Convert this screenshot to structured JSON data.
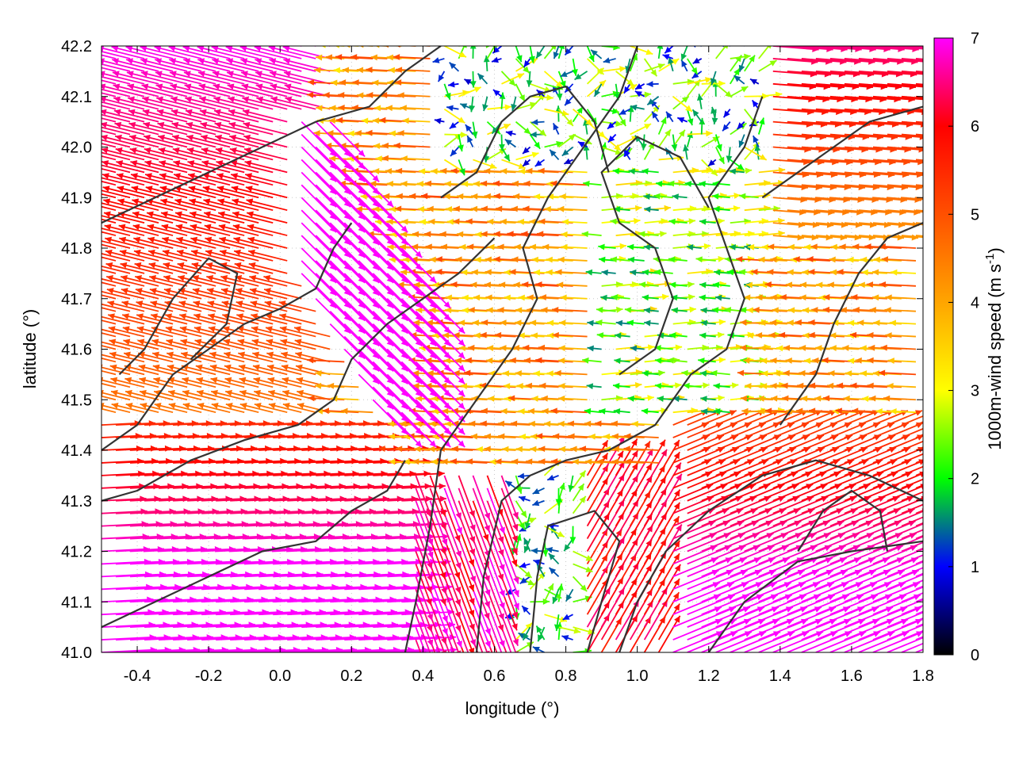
{
  "chart_data": {
    "type": "vector-field",
    "xlabel": "longitude (°)",
    "ylabel": "latitude (°)",
    "xlim": [
      -0.5,
      1.8
    ],
    "ylim": [
      41.0,
      42.2
    ],
    "xticks": [
      "-0.4",
      "-0.2",
      "0.0",
      "0.2",
      "0.4",
      "0.6",
      "0.8",
      "1.0",
      "1.2",
      "1.4",
      "1.6",
      "1.8"
    ],
    "xtick_values": [
      -0.4,
      -0.2,
      0.0,
      0.2,
      0.4,
      0.6,
      0.8,
      1.0,
      1.2,
      1.4,
      1.6,
      1.8
    ],
    "yticks": [
      "41.0",
      "41.1",
      "41.2",
      "41.3",
      "41.4",
      "41.5",
      "41.6",
      "41.7",
      "41.8",
      "41.9",
      "42.0",
      "42.1",
      "42.2"
    ],
    "ytick_values": [
      41.0,
      41.1,
      41.2,
      41.3,
      41.4,
      41.5,
      41.6,
      41.7,
      41.8,
      41.9,
      42.0,
      42.1,
      42.2
    ],
    "grid": true,
    "colorbar": {
      "label": "1000m-wind speed (m s",
      "label_sup": "-1",
      "label_close": ")",
      "range": [
        0,
        7
      ],
      "ticks": [
        "0",
        "1",
        "2",
        "3",
        "4",
        "5",
        "6",
        "7"
      ],
      "tick_values": [
        0,
        1,
        2,
        3,
        4,
        5,
        6,
        7
      ],
      "stops": [
        {
          "v": 0,
          "color": "#000000"
        },
        {
          "v": 1,
          "color": "#0000ff"
        },
        {
          "v": 2,
          "color": "#00ff00"
        },
        {
          "v": 3,
          "color": "#ffff00"
        },
        {
          "v": 4,
          "color": "#ffa500"
        },
        {
          "v": 5,
          "color": "#ff5000"
        },
        {
          "v": 6,
          "color": "#ff0000"
        },
        {
          "v": 7,
          "color": "#ff00ff"
        }
      ]
    },
    "contour_color": "#333333",
    "contours": [
      [
        [
          0.35,
          41.0
        ],
        [
          0.38,
          41.1
        ],
        [
          0.42,
          41.25
        ],
        [
          0.45,
          41.4
        ],
        [
          0.55,
          41.5
        ],
        [
          0.65,
          41.6
        ],
        [
          0.72,
          41.7
        ],
        [
          0.68,
          41.8
        ],
        [
          0.75,
          41.9
        ],
        [
          0.85,
          42.0
        ],
        [
          0.95,
          42.1
        ],
        [
          1.0,
          42.2
        ]
      ],
      [
        [
          0.55,
          41.0
        ],
        [
          0.57,
          41.15
        ],
        [
          0.62,
          41.3
        ],
        [
          0.7,
          41.35
        ],
        [
          0.8,
          41.38
        ],
        [
          0.92,
          41.4
        ],
        [
          1.05,
          41.45
        ],
        [
          1.15,
          41.55
        ],
        [
          1.25,
          41.6
        ],
        [
          1.3,
          41.7
        ],
        [
          1.25,
          41.8
        ],
        [
          1.2,
          41.9
        ],
        [
          1.3,
          42.0
        ],
        [
          1.35,
          42.1
        ]
      ],
      [
        [
          0.7,
          41.0
        ],
        [
          0.72,
          41.15
        ],
        [
          0.75,
          41.25
        ],
        [
          0.88,
          41.28
        ],
        [
          0.95,
          41.22
        ],
        [
          0.9,
          41.1
        ],
        [
          0.86,
          41.0
        ]
      ],
      [
        [
          0.95,
          41.0
        ],
        [
          1.0,
          41.1
        ],
        [
          1.08,
          41.2
        ],
        [
          1.2,
          41.28
        ],
        [
          1.35,
          41.35
        ],
        [
          1.5,
          41.38
        ],
        [
          1.65,
          41.35
        ],
        [
          1.8,
          41.3
        ]
      ],
      [
        [
          1.2,
          41.0
        ],
        [
          1.3,
          41.1
        ],
        [
          1.45,
          41.18
        ],
        [
          1.6,
          41.2
        ],
        [
          1.8,
          41.22
        ]
      ],
      [
        [
          -0.5,
          41.4
        ],
        [
          -0.4,
          41.45
        ],
        [
          -0.3,
          41.55
        ],
        [
          -0.2,
          41.6
        ],
        [
          -0.1,
          41.65
        ],
        [
          0.0,
          41.68
        ],
        [
          0.1,
          41.72
        ],
        [
          0.15,
          41.8
        ],
        [
          0.2,
          41.85
        ]
      ],
      [
        [
          -0.5,
          41.85
        ],
        [
          -0.35,
          41.9
        ],
        [
          -0.2,
          41.95
        ],
        [
          -0.05,
          42.0
        ],
        [
          0.1,
          42.05
        ],
        [
          0.25,
          42.08
        ],
        [
          0.35,
          42.15
        ],
        [
          0.45,
          42.2
        ]
      ],
      [
        [
          -0.5,
          41.3
        ],
        [
          -0.4,
          41.32
        ],
        [
          -0.25,
          41.38
        ],
        [
          -0.1,
          41.42
        ],
        [
          0.05,
          41.45
        ],
        [
          0.15,
          41.5
        ],
        [
          0.2,
          41.58
        ],
        [
          0.3,
          41.65
        ],
        [
          0.4,
          41.7
        ],
        [
          0.5,
          41.75
        ],
        [
          0.6,
          41.82
        ]
      ],
      [
        [
          -0.5,
          41.05
        ],
        [
          -0.35,
          41.1
        ],
        [
          -0.2,
          41.15
        ],
        [
          -0.05,
          41.2
        ],
        [
          0.1,
          41.22
        ],
        [
          0.2,
          41.28
        ],
        [
          0.3,
          41.32
        ],
        [
          0.35,
          41.38
        ]
      ],
      [
        [
          0.95,
          41.55
        ],
        [
          1.05,
          41.6
        ],
        [
          1.1,
          41.7
        ],
        [
          1.05,
          41.8
        ],
        [
          0.95,
          41.85
        ],
        [
          0.9,
          41.95
        ],
        [
          1.0,
          42.02
        ],
        [
          1.12,
          41.98
        ],
        [
          1.2,
          41.88
        ]
      ],
      [
        [
          1.4,
          41.45
        ],
        [
          1.5,
          41.55
        ],
        [
          1.55,
          41.65
        ],
        [
          1.62,
          41.75
        ],
        [
          1.7,
          41.82
        ],
        [
          1.8,
          41.85
        ]
      ],
      [
        [
          1.35,
          41.9
        ],
        [
          1.45,
          41.95
        ],
        [
          1.55,
          42.0
        ],
        [
          1.65,
          42.05
        ],
        [
          1.8,
          42.08
        ]
      ],
      [
        [
          0.45,
          41.9
        ],
        [
          0.55,
          41.95
        ],
        [
          0.62,
          42.05
        ],
        [
          0.7,
          42.1
        ],
        [
          0.8,
          42.12
        ],
        [
          0.88,
          42.05
        ],
        [
          0.92,
          41.95
        ]
      ],
      [
        [
          1.45,
          41.2
        ],
        [
          1.52,
          41.28
        ],
        [
          1.6,
          41.32
        ],
        [
          1.68,
          41.28
        ],
        [
          1.7,
          41.2
        ]
      ],
      [
        [
          -0.45,
          41.55
        ],
        [
          -0.38,
          41.6
        ],
        [
          -0.3,
          41.7
        ],
        [
          -0.2,
          41.78
        ],
        [
          -0.12,
          41.75
        ],
        [
          -0.15,
          41.65
        ],
        [
          -0.25,
          41.58
        ]
      ]
    ],
    "wind_field": {
      "lon_step": 0.04,
      "lat_step": 0.025,
      "note_units": "speed in m s-1, direction in degrees toward"
    }
  }
}
